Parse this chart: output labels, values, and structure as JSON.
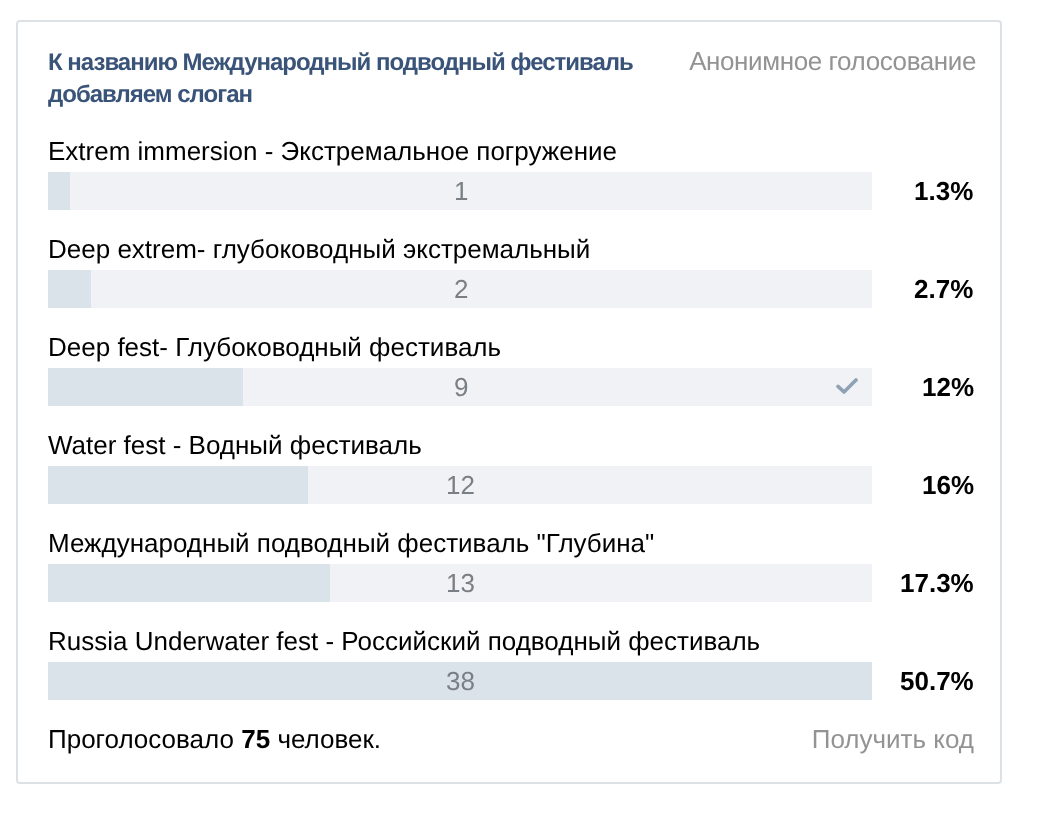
{
  "chart_data": {
    "type": "bar",
    "orientation": "horizontal",
    "title": "К названию Международный подводный фестиваль добавляем слоган",
    "subtitle": "Анонимное голосование",
    "categories": [
      "Extrem immersion - Экстремальное погружение",
      "Deep extrem- глубоководный экстремальный",
      "Deep fest- Глубоководный фестиваль",
      "Water fest - Водный фестиваль",
      "Международный подводный фестиваль \"Глубина\"",
      "Russia Underwater fest - Российский подводный фестиваль"
    ],
    "values": [
      1,
      2,
      9,
      12,
      13,
      38
    ],
    "color": "#dae2ea",
    "xlim": [
      0,
      38
    ],
    "data_labels": true,
    "tick_labels": "y",
    "annotations": [
      "1.3%",
      "2.7%",
      "12%",
      "16%",
      "17.3%",
      "50.7%",
      "Проголосовало 75 человек.",
      "Получить код"
    ]
  }
}
